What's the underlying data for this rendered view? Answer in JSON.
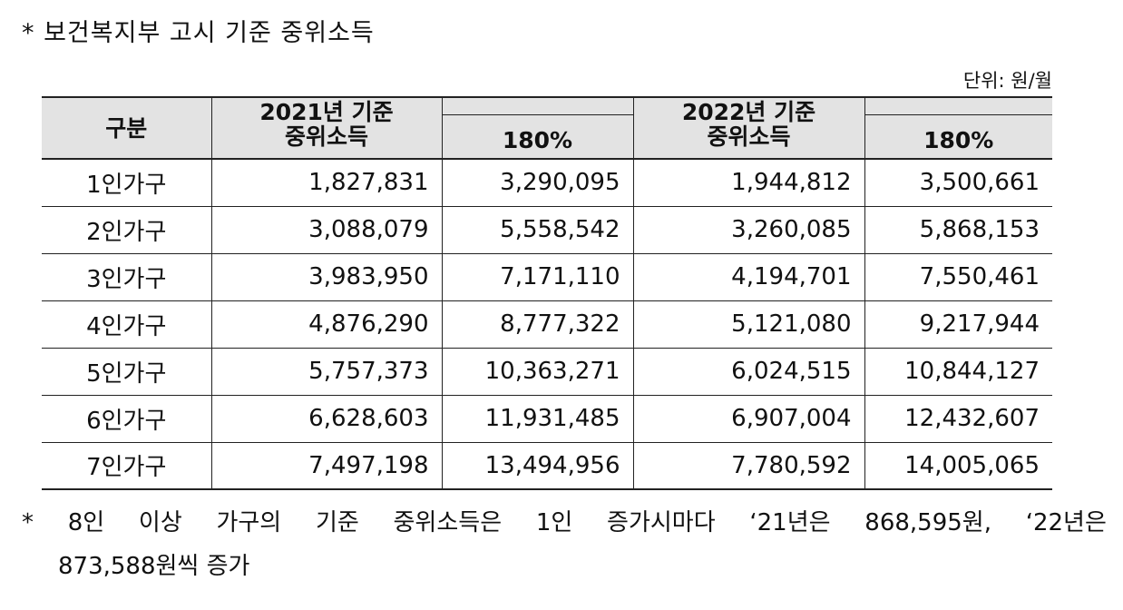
{
  "title": "* 보건복지부 고시 기준 중위소득",
  "unit": "단위: 원/월",
  "header": {
    "category": "구분",
    "group_2021_line1": "2021년 기준",
    "group_2021_line2": "중위소득",
    "pct_2021": "180%",
    "group_2022_line1": "2022년 기준",
    "group_2022_line2": "중위소득",
    "pct_2022": "180%"
  },
  "rows": [
    {
      "category": "1인가구",
      "median_2021": "1,827,831",
      "pct_2021": "3,290,095",
      "median_2022": "1,944,812",
      "pct_2022": "3,500,661"
    },
    {
      "category": "2인가구",
      "median_2021": "3,088,079",
      "pct_2021": "5,558,542",
      "median_2022": "3,260,085",
      "pct_2022": "5,868,153"
    },
    {
      "category": "3인가구",
      "median_2021": "3,983,950",
      "pct_2021": "7,171,110",
      "median_2022": "4,194,701",
      "pct_2022": "7,550,461"
    },
    {
      "category": "4인가구",
      "median_2021": "4,876,290",
      "pct_2021": "8,777,322",
      "median_2022": "5,121,080",
      "pct_2022": "9,217,944"
    },
    {
      "category": "5인가구",
      "median_2021": "5,757,373",
      "pct_2021": "10,363,271",
      "median_2022": "6,024,515",
      "pct_2022": "10,844,127"
    },
    {
      "category": "6인가구",
      "median_2021": "6,628,603",
      "pct_2021": "11,931,485",
      "median_2022": "6,907,004",
      "pct_2022": "12,432,607"
    },
    {
      "category": "7인가구",
      "median_2021": "7,497,198",
      "pct_2021": "13,494,956",
      "median_2022": "7,780,592",
      "pct_2022": "14,005,065"
    }
  ],
  "note": {
    "bullet": "*",
    "words": [
      "8인",
      "이상",
      "가구의",
      "기준",
      "중위소득은",
      "1인",
      "증가시마다",
      "‘21년은",
      "868,595원,",
      "‘22년은"
    ],
    "line2": "873,588원씩 증가"
  }
}
